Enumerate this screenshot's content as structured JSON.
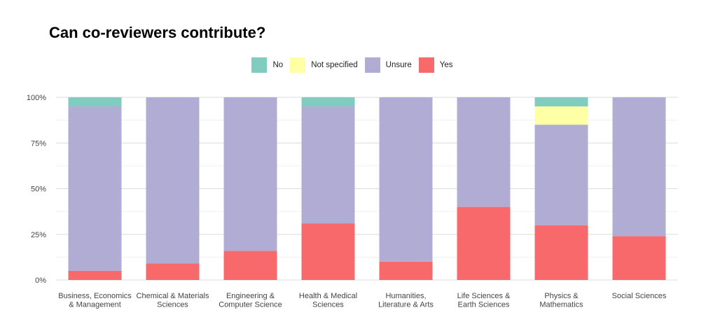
{
  "chart_data": {
    "type": "bar",
    "stacked": true,
    "title": "Can co-reviewers contribute?",
    "xlabel": "",
    "ylabel": "",
    "ylim": [
      0,
      1
    ],
    "yticks": [
      0,
      0.25,
      0.5,
      0.75,
      1
    ],
    "ytick_labels": [
      "0%",
      "25%",
      "50%",
      "75%",
      "100%"
    ],
    "grid": true,
    "legend_position": "top",
    "categories": [
      [
        "Business, Economics",
        "& Management"
      ],
      [
        "Chemical & Materials",
        "Sciences"
      ],
      [
        "Engineering &",
        "Computer Science"
      ],
      [
        "Health & Medical",
        "Sciences"
      ],
      [
        "Humanities,",
        "Literature & Arts"
      ],
      [
        "Life Sciences &",
        "Earth Sciences"
      ],
      [
        "Physics &",
        "Mathematics"
      ],
      [
        "Social Sciences"
      ]
    ],
    "series": [
      {
        "name": "Yes",
        "color": "#f8696b",
        "values": [
          0.05,
          0.09,
          0.16,
          0.31,
          0.1,
          0.4,
          0.3,
          0.24
        ]
      },
      {
        "name": "Unsure",
        "color": "#b1acd3",
        "values": [
          0.9,
          0.91,
          0.84,
          0.64,
          0.9,
          0.6,
          0.55,
          0.76
        ]
      },
      {
        "name": "Not specified",
        "color": "#ffffa5",
        "values": [
          0,
          0,
          0,
          0,
          0,
          0,
          0.1,
          0
        ]
      },
      {
        "name": "No",
        "color": "#80cdc0",
        "values": [
          0.05,
          0,
          0,
          0.05,
          0,
          0,
          0.05,
          0
        ]
      }
    ],
    "legend_order": [
      "No",
      "Not specified",
      "Unsure",
      "Yes"
    ]
  }
}
